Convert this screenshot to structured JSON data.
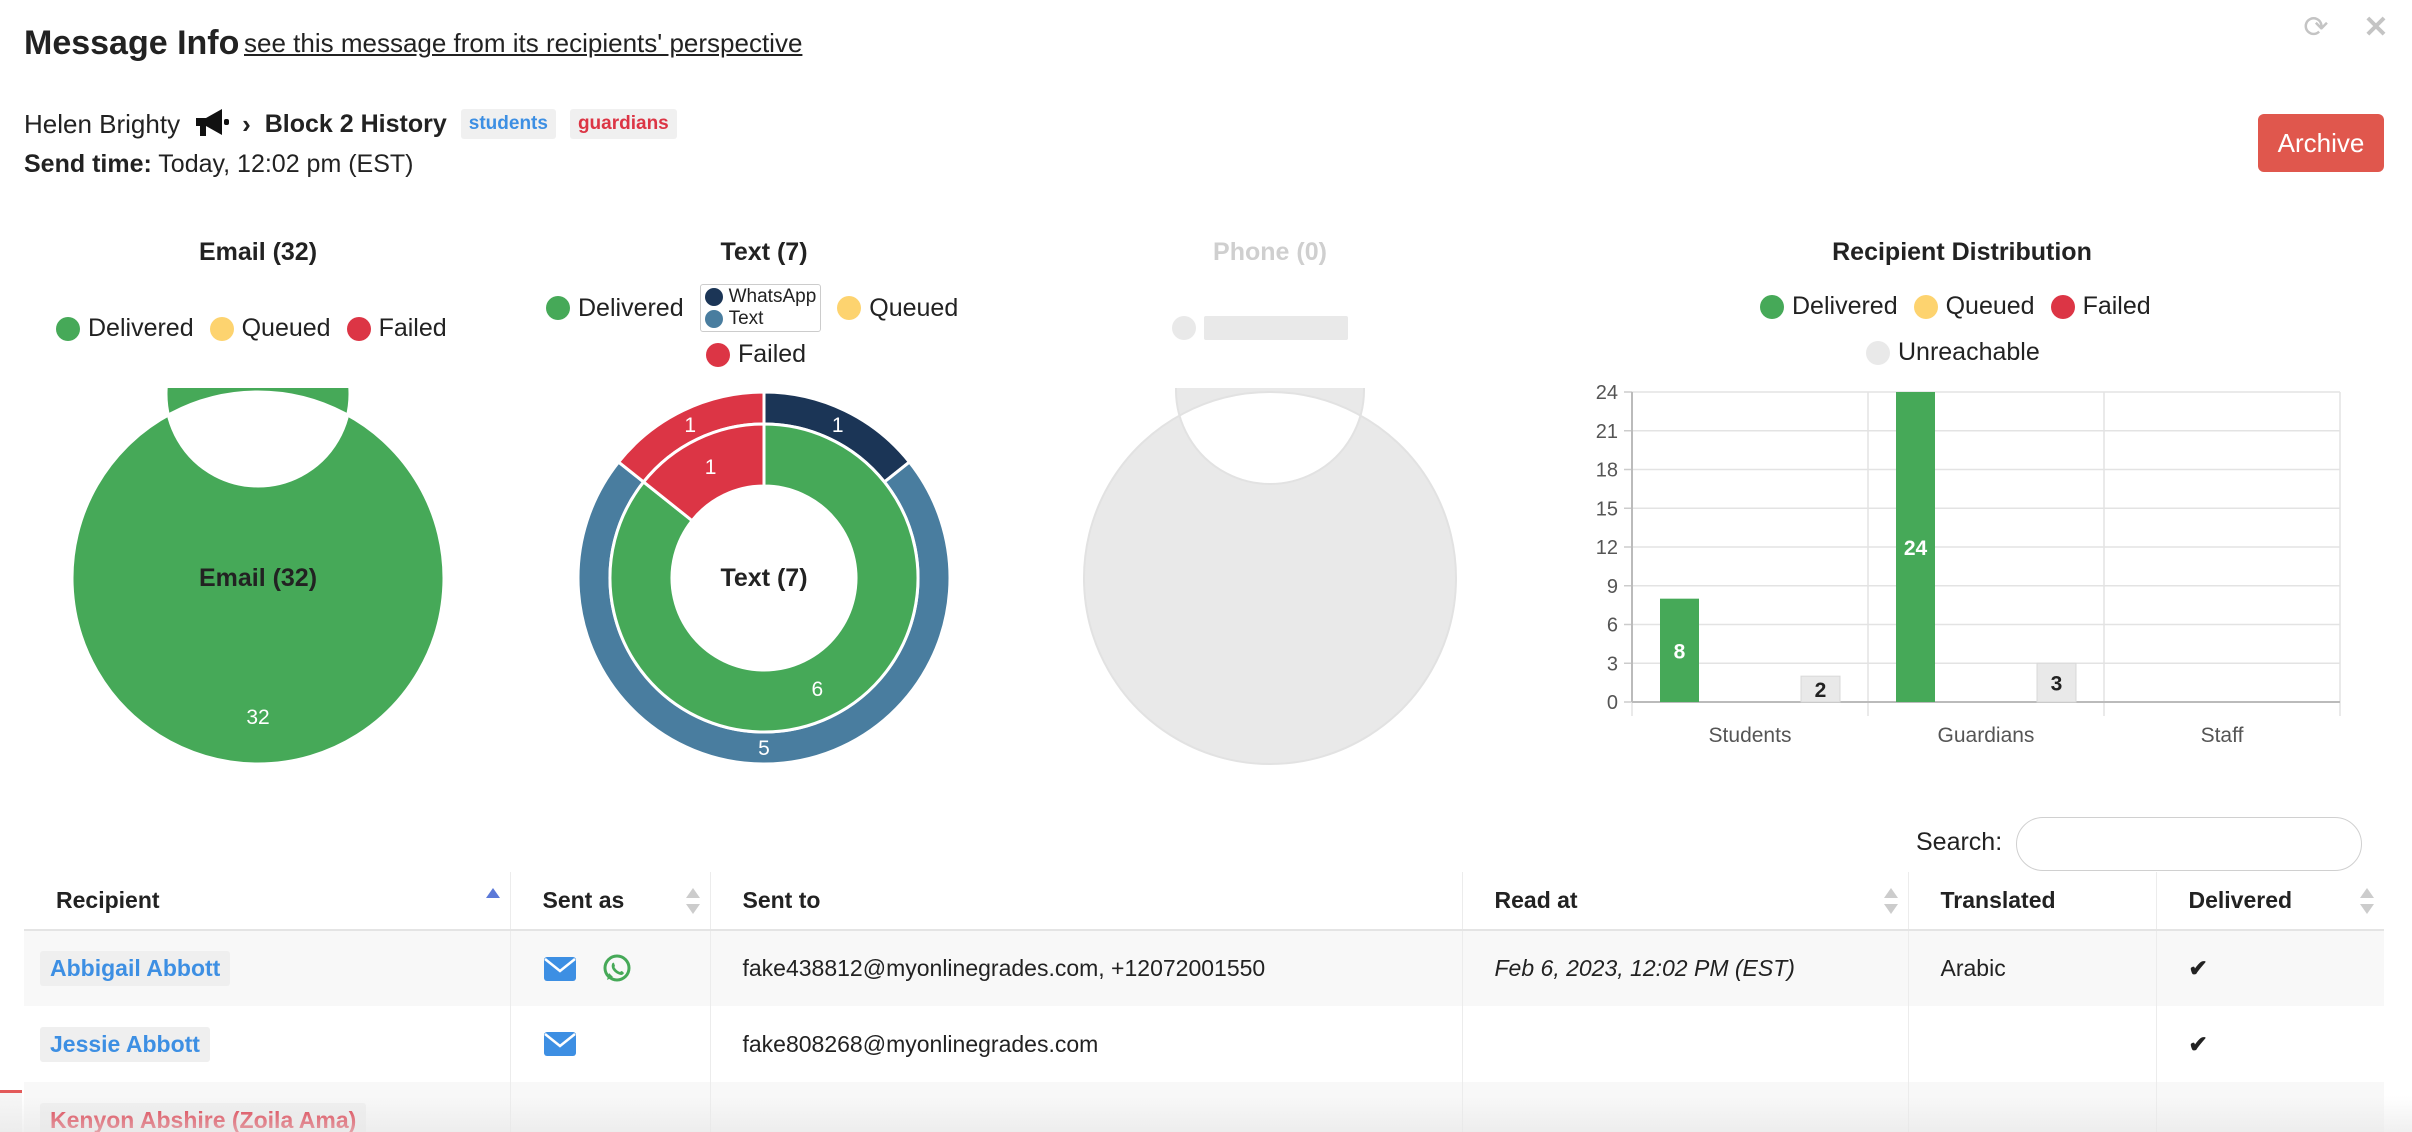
{
  "header": {
    "title": "Message Info",
    "perspective_link": "see this message from its recipients' perspective"
  },
  "message": {
    "sender": "Helen Brighty",
    "chevron": "›",
    "group": "Block 2 History",
    "tags": [
      "students",
      "guardians"
    ],
    "send_time_label": "Send time:",
    "send_time_value": "Today, 12:02 pm (EST)"
  },
  "archive_label": "Archive",
  "colors": {
    "delivered": "#46a958",
    "queued": "#fdd36f",
    "failed": "#dc3545",
    "unreachable": "#e9e9e9",
    "whatsapp": "#1b3556",
    "text": "#497d9f",
    "accent_blue": "#3d8fe3",
    "archive": "#e0574d"
  },
  "legend_labels": {
    "delivered": "Delivered",
    "queued": "Queued",
    "failed": "Failed",
    "unreachable": "Unreachable",
    "whatsapp": "WhatsApp",
    "text": "Text"
  },
  "chart_data": [
    {
      "type": "pie",
      "title": "Email (32)",
      "center_label": "Email (32)",
      "slices": [
        {
          "name": "Delivered",
          "value": 32
        }
      ]
    },
    {
      "type": "pie",
      "title": "Text (7)",
      "center_label": "Text (7)",
      "outer_ring": [
        {
          "name": "WhatsApp",
          "value": 1
        },
        {
          "name": "Text",
          "value": 5
        },
        {
          "name": "Failed",
          "value": 1
        }
      ],
      "inner_ring": [
        {
          "name": "Delivered",
          "value": 6
        },
        {
          "name": "Failed",
          "value": 1
        }
      ]
    },
    {
      "type": "pie",
      "title": "Phone (0)",
      "slices": []
    },
    {
      "type": "bar",
      "title": "Recipient Distribution",
      "categories": [
        "Students",
        "Guardians",
        "Staff"
      ],
      "series": [
        {
          "name": "Delivered",
          "values": [
            8,
            24,
            0
          ]
        },
        {
          "name": "Queued",
          "values": [
            0,
            0,
            0
          ]
        },
        {
          "name": "Failed",
          "values": [
            0,
            0,
            0
          ]
        },
        {
          "name": "Unreachable",
          "values": [
            2,
            3,
            0
          ]
        }
      ],
      "ylim": [
        0,
        24
      ],
      "yticks": [
        0,
        3,
        6,
        9,
        12,
        15,
        18,
        21,
        24
      ],
      "grid": true,
      "legend": "top"
    }
  ],
  "search": {
    "label": "Search:",
    "value": ""
  },
  "table": {
    "columns": [
      "Recipient",
      "Sent as",
      "Sent to",
      "Read at",
      "Translated",
      "Delivered"
    ],
    "rows": [
      {
        "recipient": "Abbigail Abbott",
        "sent_as": [
          "envelope-icon",
          "whatsapp-icon"
        ],
        "sent_to": "fake438812@myonlinegrades.com, +12072001550",
        "read_at": "Feb 6, 2023, 12:02 PM (EST)",
        "translated": "Arabic",
        "delivered": "✔"
      },
      {
        "recipient": "Jessie Abbott",
        "sent_as": [
          "envelope-icon"
        ],
        "sent_to": "fake808268@myonlinegrades.com",
        "read_at": "",
        "translated": "",
        "delivered": "✔"
      },
      {
        "recipient": "Kenyon Abshire (Zoila Ama)",
        "sent_as": [],
        "sent_to": "",
        "read_at": "",
        "translated": "",
        "delivered": ""
      }
    ]
  }
}
